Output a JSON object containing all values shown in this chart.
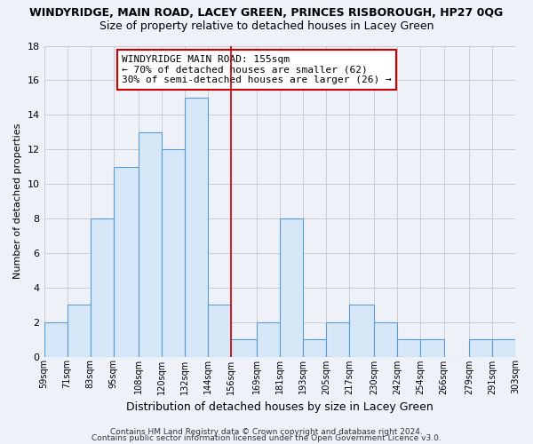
{
  "title": "WINDYRIDGE, MAIN ROAD, LACEY GREEN, PRINCES RISBOROUGH, HP27 0QG",
  "subtitle": "Size of property relative to detached houses in Lacey Green",
  "xlabel": "Distribution of detached houses by size in Lacey Green",
  "ylabel": "Number of detached properties",
  "bin_edges": [
    59,
    71,
    83,
    95,
    108,
    120,
    132,
    144,
    156,
    169,
    181,
    193,
    205,
    217,
    230,
    242,
    254,
    266,
    279,
    291,
    303
  ],
  "bin_labels": [
    "59sqm",
    "71sqm",
    "83sqm",
    "95sqm",
    "108sqm",
    "120sqm",
    "132sqm",
    "144sqm",
    "156sqm",
    "169sqm",
    "181sqm",
    "193sqm",
    "205sqm",
    "217sqm",
    "230sqm",
    "242sqm",
    "254sqm",
    "266sqm",
    "279sqm",
    "291sqm",
    "303sqm"
  ],
  "counts": [
    2,
    3,
    8,
    11,
    13,
    12,
    15,
    3,
    1,
    2,
    8,
    1,
    2,
    3,
    2,
    1,
    1,
    0,
    1,
    1
  ],
  "bar_facecolor": "#d6e8f7",
  "bar_edgecolor": "#5b9bd5",
  "vline_x": 156,
  "vline_color": "#cc0000",
  "annotation_text": "WINDYRIDGE MAIN ROAD: 155sqm\n← 70% of detached houses are smaller (62)\n30% of semi-detached houses are larger (26) →",
  "annotation_box_edgecolor": "#cc0000",
  "annotation_box_facecolor": "white",
  "ylim": [
    0,
    18
  ],
  "yticks": [
    0,
    2,
    4,
    6,
    8,
    10,
    12,
    14,
    16,
    18
  ],
  "footer1": "Contains HM Land Registry data © Crown copyright and database right 2024.",
  "footer2": "Contains public sector information licensed under the Open Government Licence v3.0.",
  "background_color": "#eef2f8",
  "grid_color": "#cccccc",
  "title_fontsize": 9,
  "subtitle_fontsize": 9,
  "annot_fontsize": 8
}
